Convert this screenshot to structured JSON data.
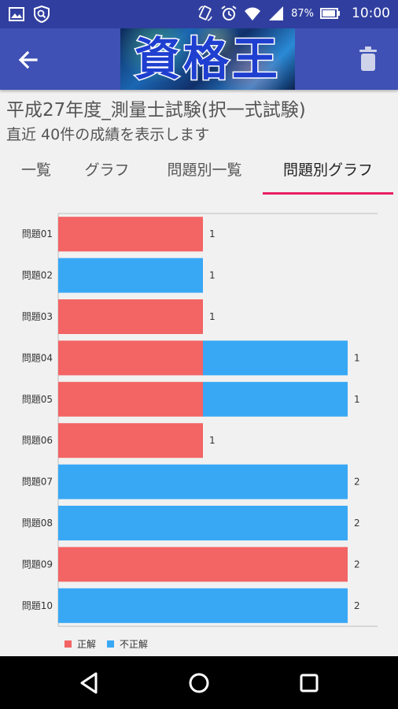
{
  "status_bar": {
    "battery": "87%",
    "time": "10:00",
    "icons": [
      "image-icon",
      "shield-search-icon",
      "rotate-icon",
      "alarm-icon",
      "wifi-icon",
      "signal-icon",
      "battery-icon"
    ]
  },
  "app_bar": {
    "logo_text": "資格王",
    "back_icon": "back-arrow-icon",
    "delete_icon": "trash-icon"
  },
  "page": {
    "title": "平成27年度_測量士試験(択一式試験)",
    "subtitle": "直近 40件の成績を表示します"
  },
  "tabs": [
    {
      "label": "一覧",
      "active": false
    },
    {
      "label": "グラフ",
      "active": false
    },
    {
      "label": "問題別一覧",
      "active": false
    },
    {
      "label": "問題別グラフ",
      "active": true
    }
  ],
  "colors": {
    "correct": "#f36464",
    "incorrect": "#38a8f5",
    "accent": "#e91e63",
    "app_bar": "#3f51b5",
    "status_bar": "#303f9f"
  },
  "chart_data": {
    "type": "bar",
    "orientation": "horizontal",
    "stacked": true,
    "categories": [
      "問題01",
      "問題02",
      "問題03",
      "問題04",
      "問題05",
      "問題06",
      "問題07",
      "問題08",
      "問題09",
      "問題10"
    ],
    "series": [
      {
        "name": "正解",
        "values": [
          1,
          0,
          1,
          1,
          1,
          1,
          0,
          0,
          2,
          0
        ]
      },
      {
        "name": "不正解",
        "values": [
          0,
          1,
          0,
          1,
          1,
          0,
          2,
          2,
          0,
          2
        ]
      }
    ],
    "xlim": [
      0,
      2
    ],
    "legend_position": "bottom-left"
  },
  "nav_bar": {
    "buttons": [
      "back-triangle-icon",
      "home-circle-icon",
      "recents-square-icon"
    ]
  }
}
